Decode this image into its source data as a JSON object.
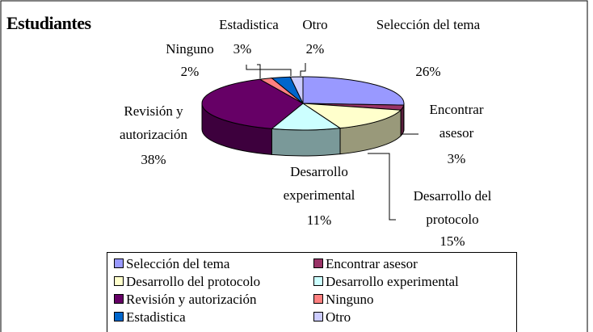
{
  "chart_data": {
    "type": "pie3d",
    "title": "Estudiantes",
    "categories": [
      "Selección del tema",
      "Encontrar asesor",
      "Desarrollo del protocolo",
      "Desarrollo experimental",
      "Revisión y autorización",
      "Ninguno",
      "Estadistica",
      "Otro"
    ],
    "values": [
      26,
      3,
      15,
      11,
      38,
      2,
      3,
      2
    ],
    "value_labels": [
      "26%",
      "3%",
      "15%",
      "11%",
      "38%",
      "2%",
      "3%",
      "2%"
    ],
    "colors": [
      "#9999ff",
      "#993366",
      "#ffffcc",
      "#ccffff",
      "#660066",
      "#ff8080",
      "#0066cc",
      "#ccccff"
    ],
    "legend": "bottom"
  }
}
